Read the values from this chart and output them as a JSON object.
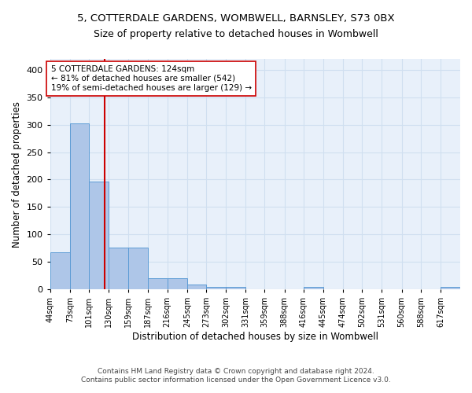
{
  "title": "5, COTTERDALE GARDENS, WOMBWELL, BARNSLEY, S73 0BX",
  "subtitle": "Size of property relative to detached houses in Wombwell",
  "xlabel": "Distribution of detached houses by size in Wombwell",
  "ylabel": "Number of detached properties",
  "bin_labels": [
    "44sqm",
    "73sqm",
    "101sqm",
    "130sqm",
    "159sqm",
    "187sqm",
    "216sqm",
    "245sqm",
    "273sqm",
    "302sqm",
    "331sqm",
    "359sqm",
    "388sqm",
    "416sqm",
    "445sqm",
    "474sqm",
    "502sqm",
    "531sqm",
    "560sqm",
    "588sqm",
    "617sqm"
  ],
  "bin_edges": [
    44,
    73,
    101,
    130,
    159,
    187,
    216,
    245,
    273,
    302,
    331,
    359,
    388,
    416,
    445,
    474,
    502,
    531,
    560,
    588,
    617
  ],
  "bar_heights": [
    67,
    303,
    197,
    76,
    76,
    20,
    20,
    8,
    5,
    5,
    0,
    0,
    0,
    5,
    0,
    0,
    0,
    0,
    0,
    0,
    4
  ],
  "bar_color": "#aec6e8",
  "bar_edge_color": "#5b9bd5",
  "ref_line_x": 124,
  "ref_line_color": "#cc0000",
  "annotation_text": "5 COTTERDALE GARDENS: 124sqm\n← 81% of detached houses are smaller (542)\n19% of semi-detached houses are larger (129) →",
  "annotation_box_color": "#ffffff",
  "annotation_box_edge": "#cc0000",
  "ylim": [
    0,
    420
  ],
  "yticks": [
    0,
    50,
    100,
    150,
    200,
    250,
    300,
    350,
    400
  ],
  "grid_color": "#d0dff0",
  "background_color": "#e8f0fa",
  "footer_text": "Contains HM Land Registry data © Crown copyright and database right 2024.\nContains public sector information licensed under the Open Government Licence v3.0.",
  "title_fontsize": 9.5,
  "subtitle_fontsize": 9,
  "xlabel_fontsize": 8.5,
  "ylabel_fontsize": 8.5,
  "annotation_fontsize": 7.5,
  "footer_fontsize": 6.5
}
